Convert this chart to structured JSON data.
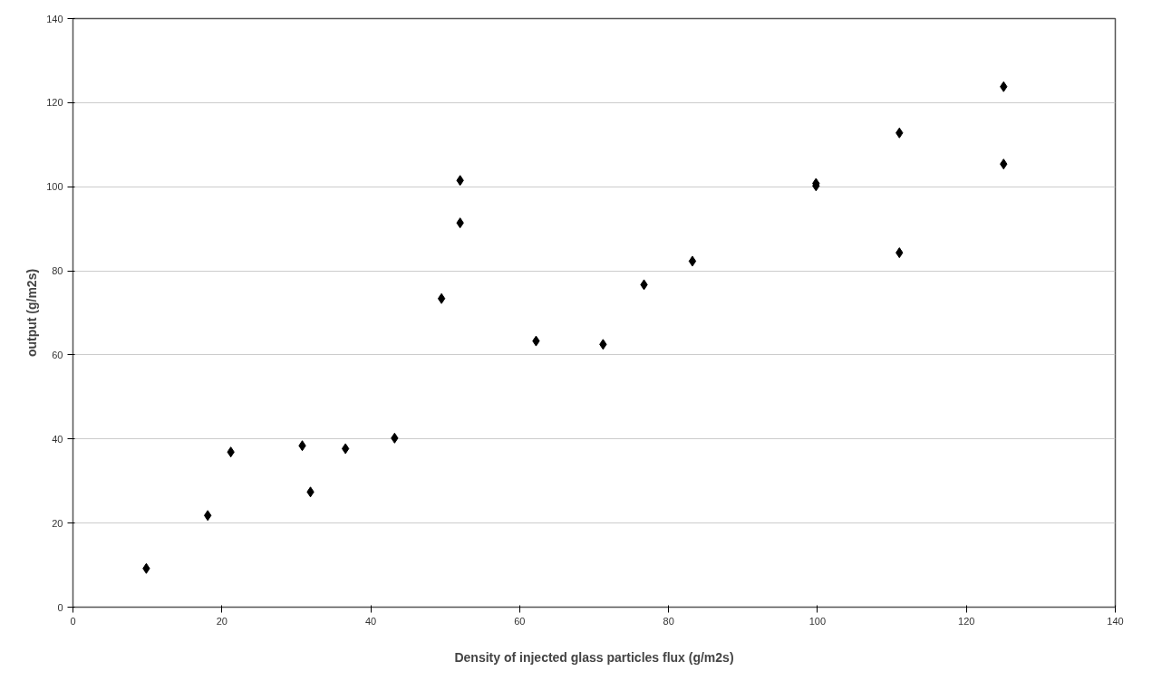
{
  "chart_data": {
    "type": "scatter",
    "xlabel": "Density of injected glass particles flux (g/m2s)",
    "ylabel": "output (g/m2s)",
    "x": [
      9.85,
      18.1,
      21.2,
      30.8,
      31.9,
      36.6,
      43.2,
      49.5,
      52.0,
      52.0,
      62.2,
      71.2,
      76.7,
      83.2,
      99.8,
      99.8,
      111.0,
      111.0,
      125.0,
      125.0
    ],
    "series": [
      {
        "color": "#000000",
        "values": [
          9.2,
          21.8,
          36.9,
          38.4,
          27.4,
          37.7,
          40.2,
          73.4,
          101.5,
          91.4,
          63.3,
          62.5,
          76.7,
          82.3,
          100.2,
          100.8,
          112.8,
          84.3,
          123.8,
          105.4
        ]
      }
    ],
    "marker": "diamond",
    "xlim": [
      0,
      140
    ],
    "ylim": [
      0,
      140
    ],
    "xticks": [
      0,
      20,
      40,
      60,
      80,
      100,
      120,
      140
    ],
    "yticks": [
      0,
      20,
      40,
      60,
      80,
      100,
      120,
      140
    ],
    "grid": "y"
  }
}
